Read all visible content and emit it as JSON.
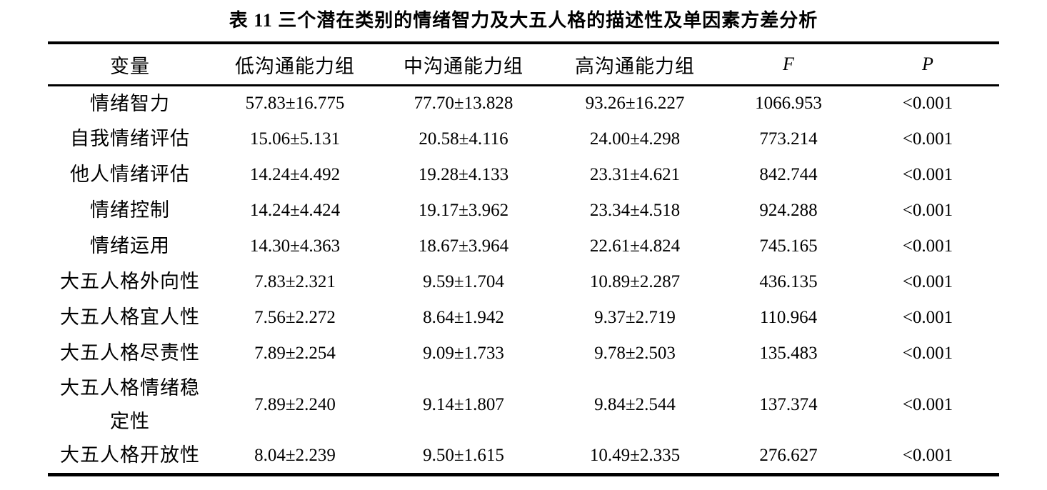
{
  "document": {
    "title": "表 11 三个潜在类别的情绪智力及大五人格的描述性及单因素方差分析"
  },
  "table": {
    "headers": [
      "变量",
      "低沟通能力组",
      "中沟通能力组",
      "高沟通能力组",
      "F",
      "P"
    ],
    "rows": [
      [
        "情绪智力",
        "57.83±16.775",
        "77.70±13.828",
        "93.26±16.227",
        "1066.953",
        "<0.001"
      ],
      [
        "自我情绪评估",
        "15.06±5.131",
        "20.58±4.116",
        "24.00±4.298",
        "773.214",
        "<0.001"
      ],
      [
        "他人情绪评估",
        "14.24±4.492",
        "19.28±4.133",
        "23.31±4.621",
        "842.744",
        "<0.001"
      ],
      [
        "情绪控制",
        "14.24±4.424",
        "19.17±3.962",
        "23.34±4.518",
        "924.288",
        "<0.001"
      ],
      [
        "情绪运用",
        "14.30±4.363",
        "18.67±3.964",
        "22.61±4.824",
        "745.165",
        "<0.001"
      ],
      [
        "大五人格外向性",
        "7.83±2.321",
        "9.59±1.704",
        "10.89±2.287",
        "436.135",
        "<0.001"
      ],
      [
        "大五人格宜人性",
        "7.56±2.272",
        "8.64±1.942",
        "9.37±2.719",
        "110.964",
        "<0.001"
      ],
      [
        "大五人格尽责性",
        "7.89±2.254",
        "9.09±1.733",
        "9.78±2.503",
        "135.483",
        "<0.001"
      ],
      [
        "大五人格情绪稳定性",
        "7.89±2.240",
        "9.14±1.807",
        "9.84±2.544",
        "137.374",
        "<0.001"
      ],
      [
        "大五人格开放性",
        "8.04±2.239",
        "9.50±1.615",
        "10.49±2.335",
        "276.627",
        "<0.001"
      ]
    ]
  }
}
